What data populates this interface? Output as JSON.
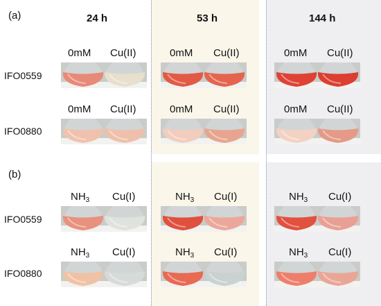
{
  "panels": {
    "a": "(a)",
    "b": "(b)"
  },
  "columns": [
    "24 h",
    "53 h",
    "144 h"
  ],
  "strains": [
    "IFO0559",
    "IFO0880"
  ],
  "conditions": {
    "a": {
      "left": "0mM",
      "right": "Cu(II)"
    },
    "b": {
      "left_base": "NH",
      "left_sub": "3",
      "right": "Cu(I)"
    }
  },
  "colors": {
    "col53_bg": "#fbf6ea",
    "col144_bg": "#efeff1",
    "divider": "#7d8fc0"
  },
  "photos": [
    {
      "id": "a-IFO0559-24h",
      "left": "#e88a78",
      "right": "#e6e0cc"
    },
    {
      "id": "a-IFO0559-53h",
      "left": "#e25a45",
      "right": "#e4644e"
    },
    {
      "id": "a-IFO0559-144h",
      "left": "#de4236",
      "right": "#dc3e32"
    },
    {
      "id": "a-IFO0880-24h",
      "left": "#f0c2ae",
      "right": "#eec0ac"
    },
    {
      "id": "a-IFO0880-53h",
      "left": "#f2cdbd",
      "right": "#e7a590"
    },
    {
      "id": "a-IFO0880-144h",
      "left": "#f3d2c4",
      "right": "#e49a86"
    },
    {
      "id": "b-IFO0559-24h",
      "left": "#e8917e",
      "right": "#dfe2dd"
    },
    {
      "id": "b-IFO0559-53h",
      "left": "#e0503e",
      "right": "#eba89a"
    },
    {
      "id": "b-IFO0559-144h",
      "left": "#e2503f",
      "right": "#e9a094"
    },
    {
      "id": "b-IFO0880-24h",
      "left": "#f0c2a4",
      "right": "#d6dad8"
    },
    {
      "id": "b-IFO0880-53h",
      "left": "#e86a52",
      "right": "#c9d2d0"
    },
    {
      "id": "b-IFO0880-144h",
      "left": "#ee7e6c",
      "right": "#e9a697"
    }
  ]
}
